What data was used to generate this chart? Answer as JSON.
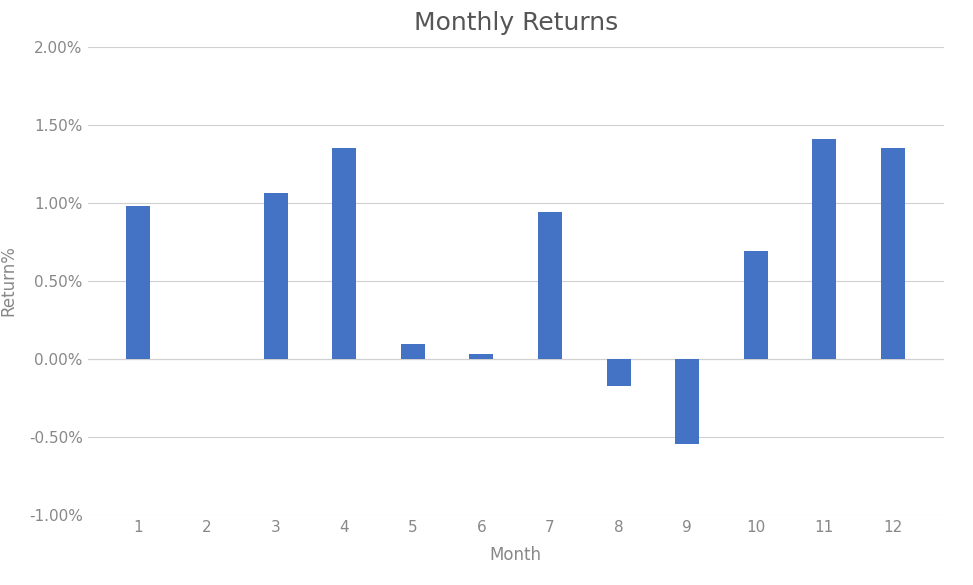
{
  "title": "Monthly Returns",
  "xlabel": "Month",
  "ylabel": "Return%",
  "categories": [
    1,
    2,
    3,
    4,
    5,
    6,
    7,
    8,
    9,
    10,
    11,
    12
  ],
  "values": [
    0.0098,
    0.0,
    0.0106,
    0.01352,
    0.00092,
    0.0003,
    0.0094,
    -0.00175,
    -0.00545,
    0.00692,
    0.0141,
    0.01352
  ],
  "bar_color": "#4472c4",
  "background_color": "#ffffff",
  "ylim": [
    -0.01,
    0.02
  ],
  "yticks": [
    -0.01,
    -0.005,
    0.0,
    0.005,
    0.01,
    0.015,
    0.02
  ],
  "title_fontsize": 18,
  "axis_label_fontsize": 12,
  "tick_fontsize": 11,
  "bar_width": 0.35,
  "grid_color": "#d0d0d0",
  "text_color": "#888888",
  "title_color": "#555555"
}
